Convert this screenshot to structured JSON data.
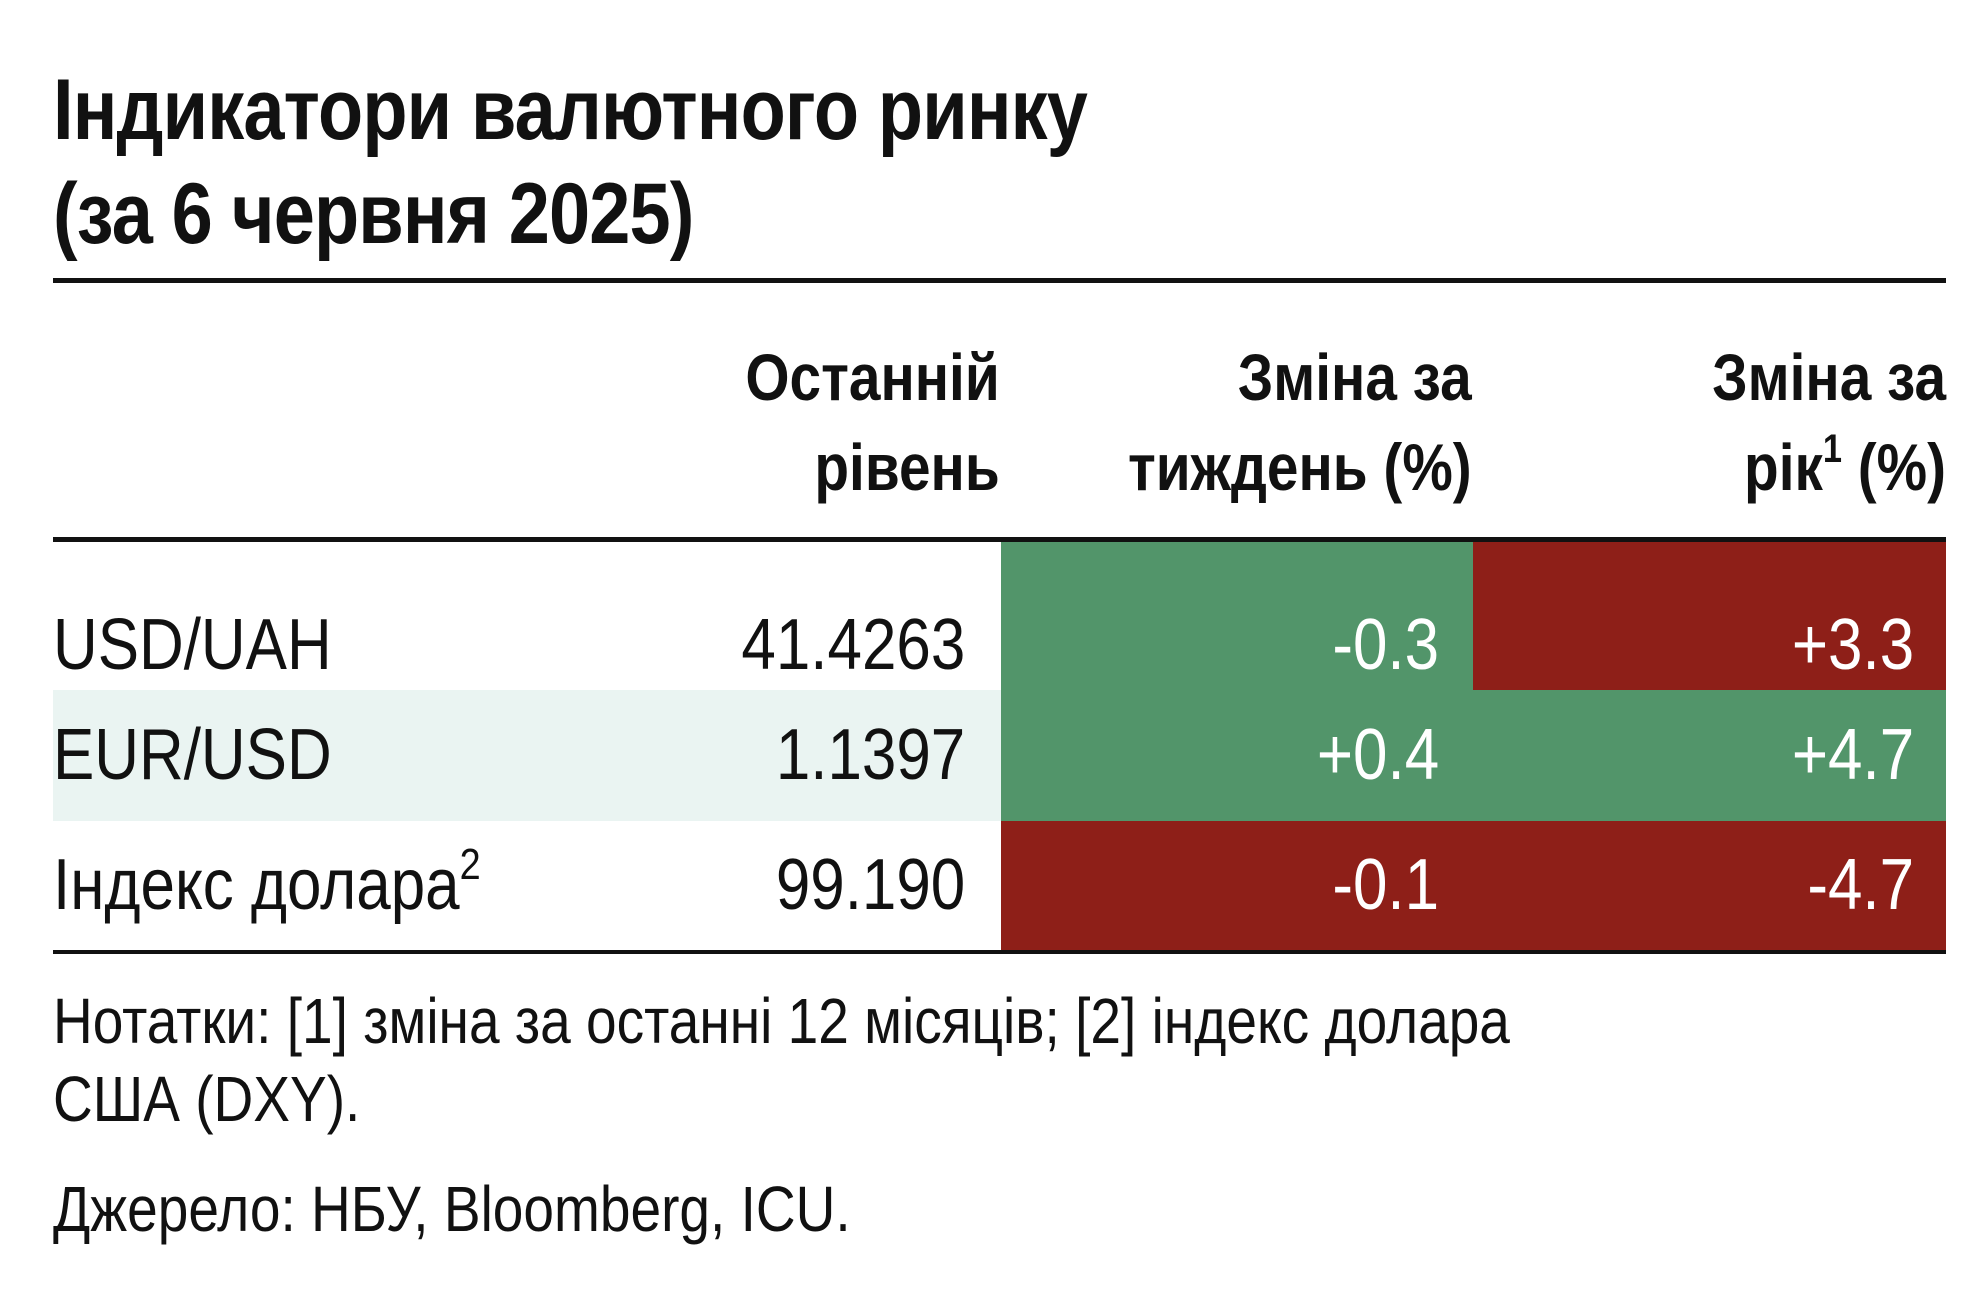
{
  "title": {
    "line1": "Індикатори валютного ринку",
    "line2": "(за 6 червня 2025)"
  },
  "columns": {
    "level": [
      "Останній",
      "рівень"
    ],
    "week": [
      "Зміна за",
      "тиждень (%)"
    ],
    "year": [
      "Зміна за",
      "рік",
      "1",
      " (%)"
    ]
  },
  "colors": {
    "positive": "#52956A",
    "negative": "#8E1F18",
    "stripe": "#EAF4F2"
  },
  "chart_data": {
    "type": "table",
    "title": "Індикатори валютного ринку (за 6 червня 2025)",
    "columns": [
      "Останній рівень",
      "Зміна за тиждень (%)",
      "Зміна за рік (%)"
    ],
    "rows": [
      {
        "label": "USD/UAH",
        "sup": "",
        "level": "41.4263",
        "week": "-0.3",
        "year": "+3.3",
        "week_sign": "positive",
        "year_sign": "negative"
      },
      {
        "label": "EUR/USD",
        "sup": "",
        "level": "1.1397",
        "week": "+0.4",
        "year": "+4.7",
        "week_sign": "positive",
        "year_sign": "positive"
      },
      {
        "label": "Індекс долара",
        "sup": "2",
        "level": "99.190",
        "week": "-0.1",
        "year": "-4.7",
        "week_sign": "negative",
        "year_sign": "negative"
      }
    ]
  },
  "notes": {
    "line1": "Нотатки: [1] зміна за останні 12 місяців; [2] індекс долара",
    "line2": "США (DXY).",
    "source": "Джерело: НБУ, Bloomberg, ICU."
  }
}
